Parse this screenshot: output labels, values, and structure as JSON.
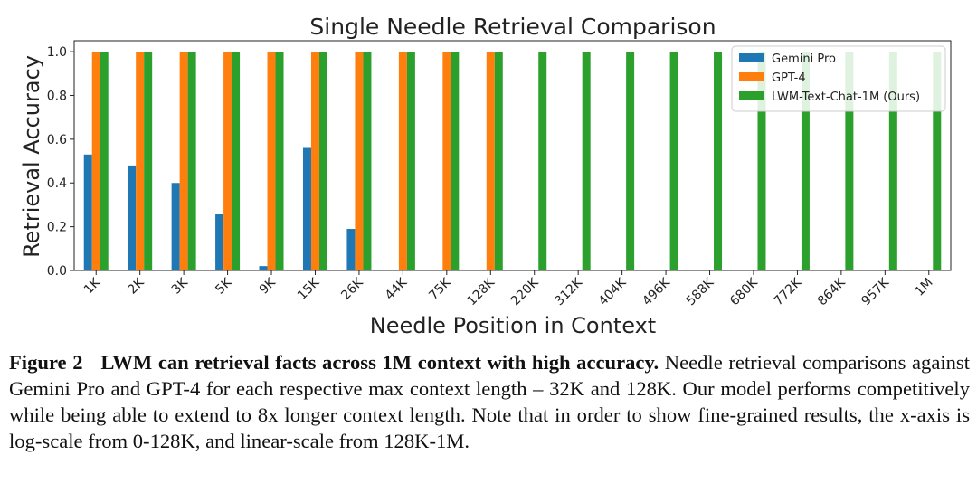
{
  "chart_data": {
    "type": "bar",
    "title": "Single Needle Retrieval Comparison",
    "xlabel": "Needle Position in Context",
    "ylabel": "Retrieval Accuracy",
    "ylim": [
      0,
      1.05
    ],
    "yticks": [
      "0.0",
      "0.2",
      "0.4",
      "0.6",
      "0.8",
      "1.0"
    ],
    "grid": false,
    "legend_position": "top-right",
    "categories": [
      "1K",
      "2K",
      "3K",
      "5K",
      "9K",
      "15K",
      "26K",
      "44K",
      "75K",
      "128K",
      "220K",
      "312K",
      "404K",
      "496K",
      "588K",
      "680K",
      "772K",
      "864K",
      "957K",
      "1M"
    ],
    "series": [
      {
        "name": "Gemini Pro",
        "color": "#1f77b4",
        "values": [
          0.53,
          0.48,
          0.4,
          0.26,
          0.02,
          0.56,
          0.19,
          null,
          null,
          null,
          null,
          null,
          null,
          null,
          null,
          null,
          null,
          null,
          null,
          null
        ]
      },
      {
        "name": "GPT-4",
        "color": "#ff7f0e",
        "values": [
          1.0,
          1.0,
          1.0,
          1.0,
          1.0,
          1.0,
          1.0,
          1.0,
          1.0,
          1.0,
          null,
          null,
          null,
          null,
          null,
          null,
          null,
          null,
          null,
          null
        ]
      },
      {
        "name": "LWM-Text-Chat-1M (Ours)",
        "color": "#2ca02c",
        "values": [
          1.0,
          1.0,
          1.0,
          1.0,
          1.0,
          1.0,
          1.0,
          1.0,
          1.0,
          1.0,
          1.0,
          1.0,
          1.0,
          1.0,
          1.0,
          1.0,
          1.0,
          1.0,
          1.0,
          1.0
        ]
      }
    ]
  },
  "caption": {
    "label": "Figure 2",
    "headline": "LWM can retrieval facts across 1M context with high accuracy.",
    "body": "Needle retrieval comparisons against Gemini Pro and GPT-4 for each respective max context length – 32K and 128K. Our model performs competitively while being able to extend to 8x longer context length. Note that in order to show fine-grained results, the x-axis is log-scale from 0-128K, and linear-scale from 128K-1M."
  }
}
